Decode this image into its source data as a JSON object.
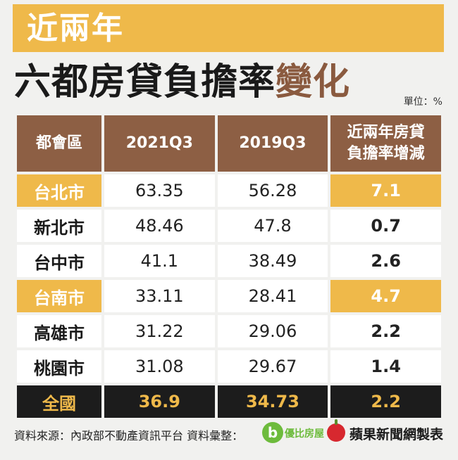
{
  "header": {
    "subtitle": "近兩年",
    "title_main": "六都房貸負擔率",
    "title_accent": "變化",
    "unit": "單位：%"
  },
  "table": {
    "columns": [
      "都會區",
      "2021Q3",
      "2019Q3",
      "近兩年房貸",
      "負擔率增減"
    ],
    "rows": [
      {
        "city": "台北市",
        "q2021": "63.35",
        "q2019": "56.28",
        "change": "7.1",
        "highlight": true
      },
      {
        "city": "新北市",
        "q2021": "48.46",
        "q2019": "47.8",
        "change": "0.7",
        "highlight": false
      },
      {
        "city": "台中市",
        "q2021": "41.1",
        "q2019": "38.49",
        "change": "2.6",
        "highlight": false
      },
      {
        "city": "台南市",
        "q2021": "33.11",
        "q2019": "28.41",
        "change": "4.7",
        "highlight": true
      },
      {
        "city": "高雄市",
        "q2021": "31.22",
        "q2019": "29.06",
        "change": "2.2",
        "highlight": false
      },
      {
        "city": "桃園市",
        "q2021": "31.08",
        "q2019": "29.67",
        "change": "1.4",
        "highlight": false
      }
    ],
    "total": {
      "city": "全國",
      "q2021": "36.9",
      "q2019": "34.73",
      "change": "2.2"
    }
  },
  "footer": {
    "source": "資料來源：內政部不動產資訊平台 資料彙整：",
    "logo_b": "b",
    "logo_b_text": "優比房屋",
    "credit": "蘋果新聞網製表"
  },
  "colors": {
    "accent": "#efb94a",
    "header_brown": "#8d5f44",
    "total_bg": "#1c1c1c"
  }
}
